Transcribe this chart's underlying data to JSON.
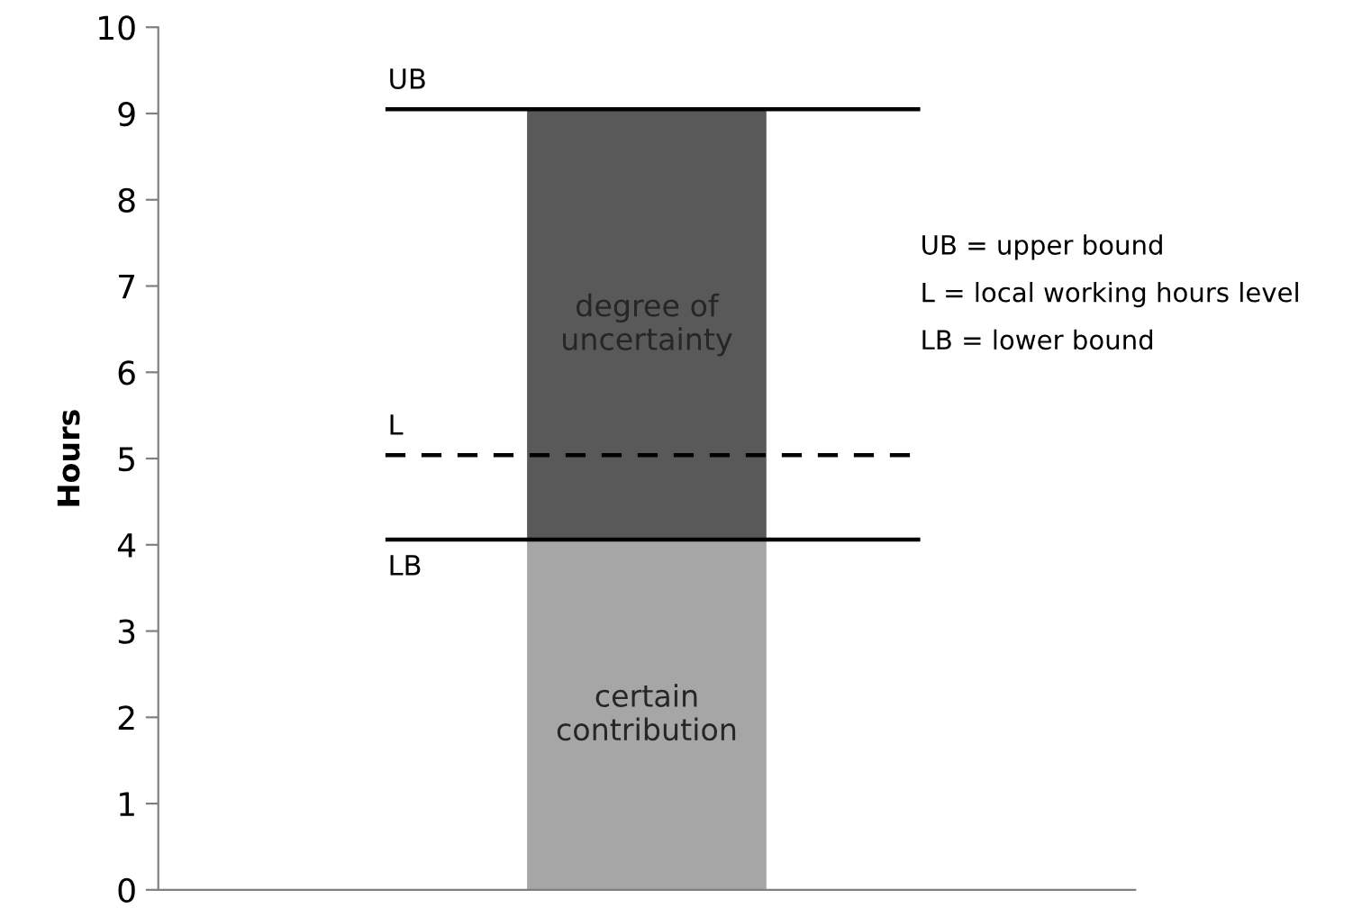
{
  "chart_data": {
    "type": "bar",
    "stacked": true,
    "categories": [
      null
    ],
    "series": [
      {
        "name": "certain contribution",
        "color": "#a6a6a6",
        "values": [
          4.05
        ]
      },
      {
        "name": "degree of uncertainty",
        "color": "#595959",
        "values": [
          5.0
        ]
      }
    ],
    "ylabel": "Hours",
    "ylim": [
      0,
      10
    ],
    "yticks": [
      0,
      1,
      2,
      3,
      4,
      5,
      6,
      7,
      8,
      9,
      10
    ],
    "grid": false,
    "legend": false,
    "ref_lines": [
      {
        "axis": "y",
        "value": 9.05,
        "label": "UB",
        "color": "#000000",
        "line_style": "solid"
      },
      {
        "axis": "y",
        "value": 5.04,
        "label": "L",
        "color": "#000000",
        "line_style": "dashed"
      },
      {
        "axis": "y",
        "value": 4.06,
        "label": "LB",
        "color": "#000000",
        "line_style": "solid"
      }
    ],
    "annotations": [
      "UB = upper bound",
      "L = local working hours level",
      "LB = lower bound"
    ]
  }
}
